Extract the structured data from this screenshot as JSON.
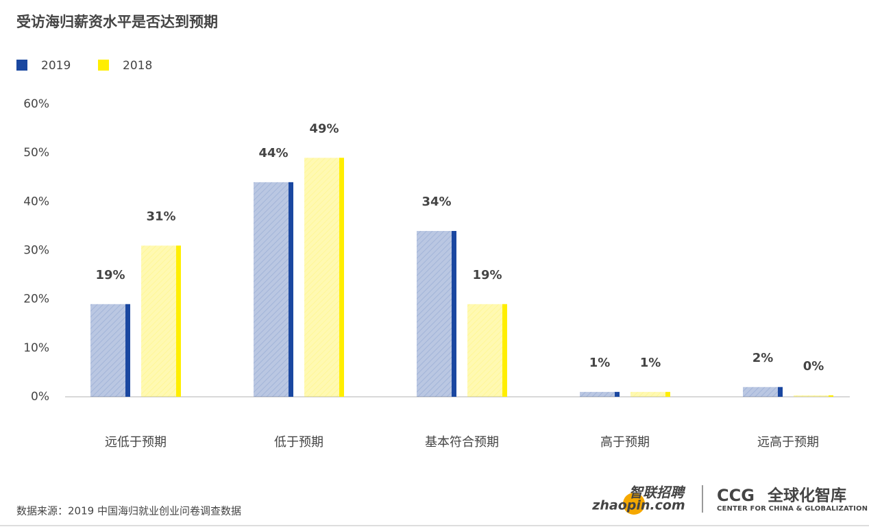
{
  "chart_data": {
    "type": "bar",
    "title": "受访海归薪资水平是否达到预期",
    "categories": [
      "远低于预期",
      "低于预期",
      "基本符合预期",
      "高于预期",
      "远高于预期"
    ],
    "series": [
      {
        "name": "2019",
        "color": "#1a47a0",
        "values": [
          19,
          44,
          34,
          1,
          2
        ],
        "value_labels": [
          "19%",
          "44%",
          "34%",
          "1%",
          "2%"
        ]
      },
      {
        "name": "2018",
        "color": "#ffee00",
        "values": [
          31,
          49,
          19,
          1,
          0.3
        ],
        "value_labels": [
          "31%",
          "49%",
          "19%",
          "1%",
          "0%"
        ]
      }
    ],
    "ylim": [
      0,
      60
    ],
    "yticks": [
      {
        "value": 0,
        "label": "0%"
      },
      {
        "value": 10,
        "label": "10%"
      },
      {
        "value": 20,
        "label": "20%"
      },
      {
        "value": 30,
        "label": "30%"
      },
      {
        "value": 40,
        "label": "40%"
      },
      {
        "value": 50,
        "label": "50%"
      },
      {
        "value": 60,
        "label": "60%"
      }
    ],
    "grid": false,
    "legend": "top-left",
    "source": "数据来源：2019 中国海归就业创业问卷调查数据"
  },
  "logos": {
    "zhaopin_cn": "智联招聘",
    "zhaopin_en": "zhaopin.com",
    "ccg": "CCG",
    "ccg_cn": "全球化智库",
    "ccg_en": "CENTER FOR CHINA & GLOBALIZATION"
  }
}
